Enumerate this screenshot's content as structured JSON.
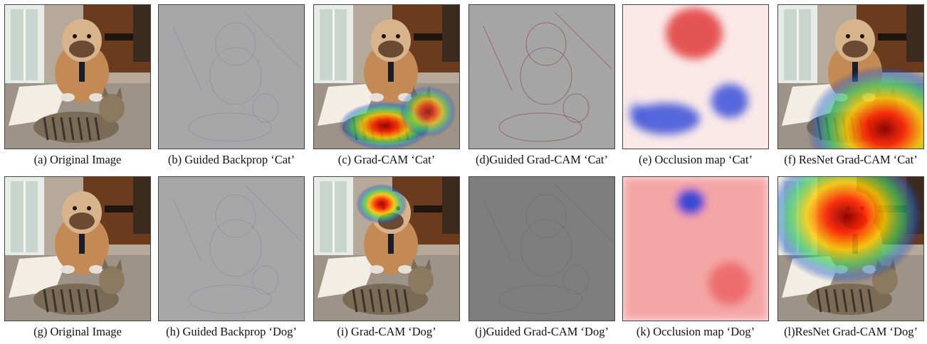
{
  "panels": [
    {
      "id": "a",
      "caption": "(a) Original Image",
      "kind": "photo",
      "row": 0,
      "col": 0
    },
    {
      "id": "b",
      "caption": "(b) Guided Backprop ‘Cat’",
      "kind": "guided",
      "row": 0,
      "col": 1
    },
    {
      "id": "c",
      "caption": "(c) Grad-CAM ‘Cat’",
      "kind": "gradcam-cat",
      "row": 0,
      "col": 2
    },
    {
      "id": "d",
      "caption": "(d)Guided Grad-CAM ‘Cat’",
      "kind": "guided-gradcam-cat",
      "row": 0,
      "col": 3
    },
    {
      "id": "e",
      "caption": "(e) Occlusion map ‘Cat’",
      "kind": "occlusion-cat",
      "row": 0,
      "col": 4
    },
    {
      "id": "f",
      "caption": "(f) ResNet Grad-CAM ‘Cat’",
      "kind": "resnet-cat",
      "row": 0,
      "col": 5
    },
    {
      "id": "g",
      "caption": "(g) Original Image",
      "kind": "photo",
      "row": 1,
      "col": 0
    },
    {
      "id": "h",
      "caption": "(h) Guided Backprop ‘Dog’",
      "kind": "guided",
      "row": 1,
      "col": 1
    },
    {
      "id": "i",
      "caption": "(i) Grad-CAM ‘Dog’",
      "kind": "gradcam-dog",
      "row": 1,
      "col": 2
    },
    {
      "id": "j",
      "caption": "(j)Guided Grad-CAM ‘Dog’",
      "kind": "guided-gradcam-dog",
      "row": 1,
      "col": 3
    },
    {
      "id": "k",
      "caption": "(k) Occlusion map ‘Dog’",
      "kind": "occlusion-dog",
      "row": 1,
      "col": 4
    },
    {
      "id": "l",
      "caption": "(l)ResNet Grad-CAM ‘Dog’",
      "kind": "resnet-dog",
      "row": 1,
      "col": 5
    }
  ]
}
